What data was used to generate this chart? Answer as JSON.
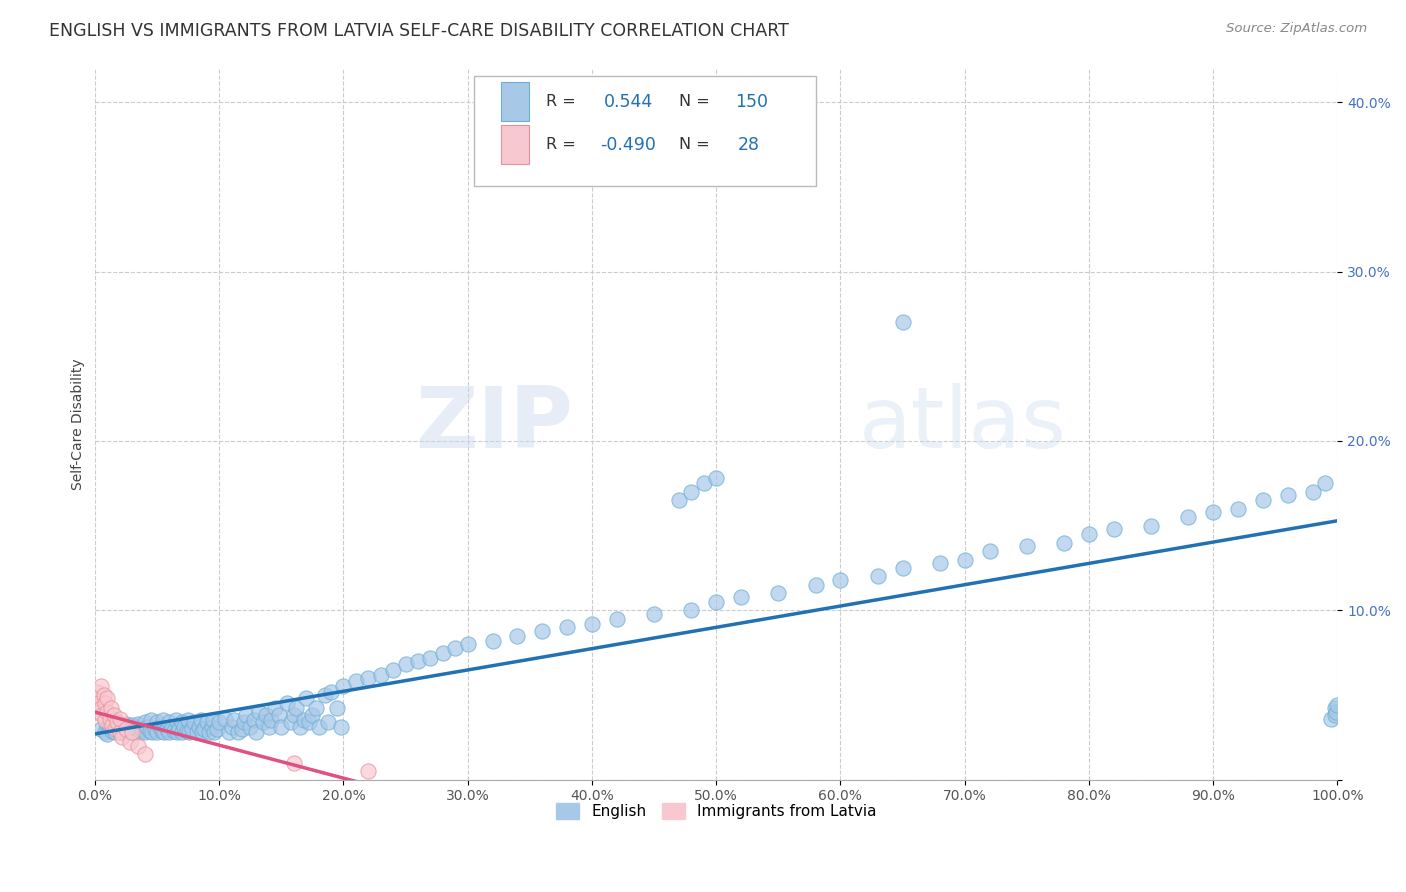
{
  "title": "ENGLISH VS IMMIGRANTS FROM LATVIA SELF-CARE DISABILITY CORRELATION CHART",
  "source": "Source: ZipAtlas.com",
  "ylabel": "Self-Care Disability",
  "watermark": "ZIPatlas",
  "xlim": [
    0,
    1.0
  ],
  "ylim": [
    0,
    0.42
  ],
  "xticks": [
    0.0,
    0.1,
    0.2,
    0.3,
    0.4,
    0.5,
    0.6,
    0.7,
    0.8,
    0.9,
    1.0
  ],
  "xticklabels": [
    "0.0%",
    "10.0%",
    "20.0%",
    "30.0%",
    "40.0%",
    "50.0%",
    "60.0%",
    "70.0%",
    "80.0%",
    "90.0%",
    "100.0%"
  ],
  "yticks": [
    0.0,
    0.1,
    0.2,
    0.3,
    0.4
  ],
  "yticklabels": [
    "",
    "10.0%",
    "20.0%",
    "30.0%",
    "40.0%"
  ],
  "english_color": "#a8c8e8",
  "english_edge_color": "#6baed6",
  "latvia_color": "#f8c8d0",
  "latvia_edge_color": "#e8909a",
  "english_line_color": "#2171b5",
  "latvia_line_color": "#e05080",
  "ytick_color": "#4472c4",
  "legend_english_R": "0.544",
  "legend_english_N": "150",
  "legend_latvia_R": "-0.490",
  "legend_latvia_N": "28",
  "english_x": [
    0.005,
    0.008,
    0.01,
    0.01,
    0.012,
    0.014,
    0.015,
    0.016,
    0.018,
    0.02,
    0.02,
    0.022,
    0.024,
    0.025,
    0.026,
    0.028,
    0.03,
    0.03,
    0.032,
    0.034,
    0.035,
    0.036,
    0.038,
    0.04,
    0.04,
    0.042,
    0.044,
    0.045,
    0.046,
    0.048,
    0.05,
    0.05,
    0.052,
    0.054,
    0.055,
    0.056,
    0.058,
    0.06,
    0.06,
    0.062,
    0.064,
    0.065,
    0.066,
    0.068,
    0.07,
    0.07,
    0.072,
    0.074,
    0.075,
    0.076,
    0.078,
    0.08,
    0.082,
    0.084,
    0.085,
    0.086,
    0.088,
    0.09,
    0.092,
    0.094,
    0.095,
    0.096,
    0.098,
    0.1,
    0.105,
    0.108,
    0.11,
    0.112,
    0.115,
    0.118,
    0.12,
    0.122,
    0.125,
    0.128,
    0.13,
    0.132,
    0.135,
    0.138,
    0.14,
    0.142,
    0.145,
    0.148,
    0.15,
    0.155,
    0.158,
    0.16,
    0.162,
    0.165,
    0.168,
    0.17,
    0.172,
    0.175,
    0.178,
    0.18,
    0.185,
    0.188,
    0.19,
    0.195,
    0.198,
    0.2,
    0.21,
    0.22,
    0.23,
    0.24,
    0.25,
    0.26,
    0.27,
    0.28,
    0.29,
    0.3,
    0.32,
    0.34,
    0.36,
    0.38,
    0.4,
    0.42,
    0.45,
    0.48,
    0.5,
    0.52,
    0.55,
    0.58,
    0.6,
    0.63,
    0.65,
    0.68,
    0.7,
    0.72,
    0.75,
    0.78,
    0.8,
    0.82,
    0.85,
    0.88,
    0.9,
    0.92,
    0.94,
    0.96,
    0.98,
    0.99,
    0.995,
    0.998,
    0.998,
    0.999,
    1.0,
    0.65,
    0.47,
    0.48,
    0.49,
    0.5
  ],
  "english_y": [
    0.03,
    0.028,
    0.032,
    0.027,
    0.031,
    0.029,
    0.033,
    0.028,
    0.03,
    0.032,
    0.028,
    0.031,
    0.029,
    0.033,
    0.028,
    0.03,
    0.032,
    0.028,
    0.031,
    0.029,
    0.033,
    0.028,
    0.03,
    0.034,
    0.028,
    0.031,
    0.029,
    0.035,
    0.028,
    0.03,
    0.034,
    0.028,
    0.031,
    0.029,
    0.035,
    0.028,
    0.03,
    0.034,
    0.028,
    0.031,
    0.029,
    0.035,
    0.028,
    0.03,
    0.034,
    0.028,
    0.031,
    0.029,
    0.035,
    0.028,
    0.03,
    0.034,
    0.028,
    0.031,
    0.035,
    0.028,
    0.03,
    0.034,
    0.028,
    0.031,
    0.035,
    0.028,
    0.03,
    0.034,
    0.036,
    0.028,
    0.031,
    0.035,
    0.028,
    0.03,
    0.034,
    0.038,
    0.031,
    0.035,
    0.028,
    0.04,
    0.034,
    0.038,
    0.031,
    0.035,
    0.042,
    0.038,
    0.031,
    0.045,
    0.034,
    0.038,
    0.042,
    0.031,
    0.035,
    0.048,
    0.034,
    0.038,
    0.042,
    0.031,
    0.05,
    0.034,
    0.052,
    0.042,
    0.031,
    0.055,
    0.058,
    0.06,
    0.062,
    0.065,
    0.068,
    0.07,
    0.072,
    0.075,
    0.078,
    0.08,
    0.082,
    0.085,
    0.088,
    0.09,
    0.092,
    0.095,
    0.098,
    0.1,
    0.105,
    0.108,
    0.11,
    0.115,
    0.118,
    0.12,
    0.125,
    0.128,
    0.13,
    0.135,
    0.138,
    0.14,
    0.145,
    0.148,
    0.15,
    0.155,
    0.158,
    0.16,
    0.165,
    0.168,
    0.17,
    0.175,
    0.036,
    0.042,
    0.038,
    0.04,
    0.044,
    0.27,
    0.165,
    0.17,
    0.175,
    0.178
  ],
  "latvia_x": [
    0.0,
    0.002,
    0.003,
    0.004,
    0.005,
    0.005,
    0.006,
    0.007,
    0.008,
    0.008,
    0.01,
    0.01,
    0.012,
    0.013,
    0.014,
    0.015,
    0.016,
    0.018,
    0.02,
    0.02,
    0.022,
    0.025,
    0.028,
    0.03,
    0.035,
    0.04,
    0.16,
    0.22
  ],
  "latvia_y": [
    0.048,
    0.052,
    0.045,
    0.04,
    0.055,
    0.042,
    0.038,
    0.05,
    0.035,
    0.045,
    0.04,
    0.048,
    0.036,
    0.042,
    0.032,
    0.038,
    0.03,
    0.034,
    0.028,
    0.036,
    0.025,
    0.03,
    0.022,
    0.028,
    0.02,
    0.015,
    0.01,
    0.005
  ]
}
